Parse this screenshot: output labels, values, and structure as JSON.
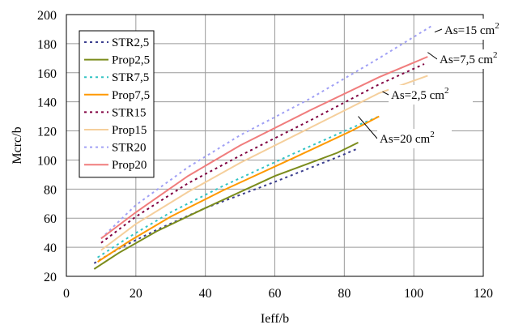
{
  "chart_data": {
    "type": "line",
    "xlabel": "Ieff/b",
    "ylabel": "Mcrc/b",
    "xlim": [
      0,
      120
    ],
    "ylim": [
      20,
      200
    ],
    "xticks": [
      0,
      20,
      40,
      60,
      80,
      100,
      120
    ],
    "yticks": [
      20,
      40,
      60,
      80,
      100,
      120,
      140,
      160,
      180,
      200
    ],
    "grid": true,
    "legend_position": "top-left",
    "series": [
      {
        "name": "STR2,5",
        "color": "#3b3f8f",
        "dash": "dotted",
        "x": [
          8,
          15,
          26,
          40,
          60,
          78,
          84
        ],
        "y": [
          29,
          39,
          52,
          67,
          85,
          102,
          108
        ]
      },
      {
        "name": "Prop2,5",
        "color": "#7b8c1c",
        "dash": "solid",
        "x": [
          8,
          15,
          26,
          40,
          60,
          78,
          84
        ],
        "y": [
          25,
          36,
          51,
          67,
          89,
          105,
          112
        ]
      },
      {
        "name": "STR7,5",
        "color": "#33c4c4",
        "dash": "dotted",
        "x": [
          9,
          18,
          30,
          45,
          65,
          82,
          90
        ],
        "y": [
          33,
          47,
          64,
          82,
          104,
          122,
          130
        ]
      },
      {
        "name": "Prop7,5",
        "color": "#ff9900",
        "dash": "solid",
        "x": [
          9,
          18,
          30,
          45,
          65,
          82,
          90
        ],
        "y": [
          30,
          44,
          61,
          79,
          101,
          120,
          130
        ]
      },
      {
        "name": "STR15",
        "color": "#800040",
        "dash": "dotted",
        "x": [
          10,
          20,
          35,
          50,
          70,
          90,
          103
        ],
        "y": [
          43,
          61,
          84,
          103,
          127,
          152,
          166
        ]
      },
      {
        "name": "Prop15",
        "color": "#f5cf9c",
        "dash": "solid",
        "x": [
          10,
          20,
          35,
          50,
          70,
          90,
          104
        ],
        "y": [
          38,
          56,
          78,
          98,
          122,
          146,
          158
        ]
      },
      {
        "name": "STR20",
        "color": "#a0a0f5",
        "dash": "dotted",
        "x": [
          10,
          20,
          35,
          50,
          70,
          90,
          105
        ],
        "y": [
          46,
          69,
          95,
          117,
          142,
          170,
          192
        ]
      },
      {
        "name": "Prop20",
        "color": "#f07d7d",
        "dash": "solid",
        "x": [
          10,
          20,
          35,
          50,
          70,
          90,
          104
        ],
        "y": [
          46,
          64,
          89,
          110,
          134,
          157,
          171
        ]
      }
    ],
    "annotations": [
      {
        "label": "As=15 cm",
        "sup": "2",
        "x": 106,
        "y": 188
      },
      {
        "label": "As=7,5 cm",
        "sup": "2",
        "x": 104,
        "y": 174
      },
      {
        "label": "As=2,5 cm",
        "sup": "2",
        "x": 91,
        "y": 147
      },
      {
        "label": "As=20 cm",
        "sup": "2",
        "x": 84,
        "y": 130
      }
    ]
  }
}
